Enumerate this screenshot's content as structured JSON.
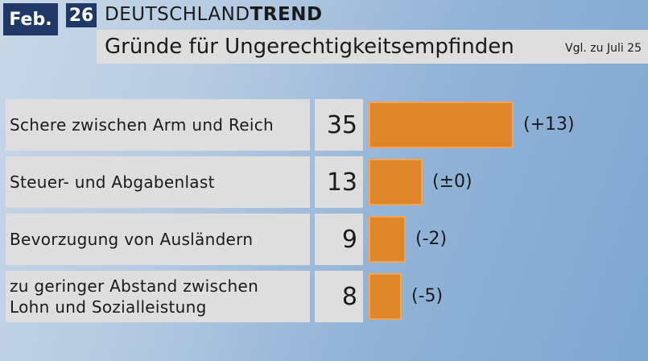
{
  "header": {
    "month": "Feb.",
    "year": "26",
    "brand_prefix": "DEUTSCHLAND",
    "brand_suffix": "TREND",
    "title": "Gründe für Ungerechtigkeitsempfinden",
    "comparison_note": "Vgl. zu Juli 25"
  },
  "colors": {
    "bar": "#e0862a",
    "badge": "#1f3866",
    "panel": "#dedede"
  },
  "chart_data": {
    "type": "bar",
    "orientation": "horizontal",
    "title": "Gründe für Ungerechtigkeitsempfinden",
    "categories": [
      "Schere zwischen Arm und Reich",
      "Steuer- und Abgabenlast",
      "Bevorzugung von Ausländern",
      "zu geringer Abstand zwischen Lohn und Sozialleistung"
    ],
    "category_lines": [
      [
        "Schere zwischen Arm und Reich"
      ],
      [
        "Steuer- und Abgabenlast"
      ],
      [
        "Bevorzugung von Ausländern"
      ],
      [
        "zu geringer Abstand zwischen",
        "Lohn und Sozialleistung"
      ]
    ],
    "values": [
      35,
      13,
      9,
      8
    ],
    "changes": [
      "(+13)",
      "(±0)",
      "(-2)",
      "(-5)"
    ],
    "grid": false
  }
}
